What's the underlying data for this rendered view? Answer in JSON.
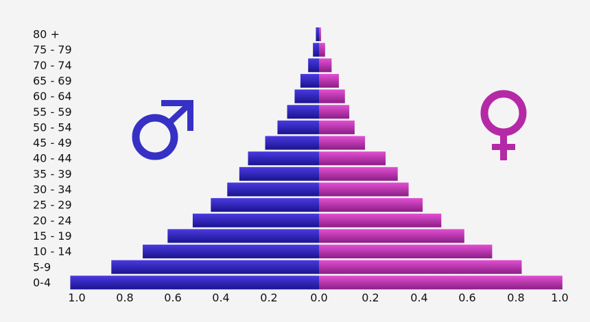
{
  "chart_data": {
    "type": "bar",
    "orientation": "horizontal-diverging",
    "title": "",
    "xlabel": "",
    "ylabel": "",
    "categories": [
      "0-4",
      "5-9",
      "10 - 14",
      "15 - 19",
      "20 - 24",
      "25 - 29",
      "30 - 34",
      "35 - 39",
      "40 - 44",
      "45 - 49",
      "50 - 54",
      "55 - 59",
      "60 - 64",
      "65 - 69",
      "70 - 74",
      "75 - 79",
      "80 +"
    ],
    "series": [
      {
        "name": "",
        "side": "left",
        "values": [
          1.03,
          0.86,
          0.73,
          0.627,
          0.523,
          0.448,
          0.38,
          0.33,
          0.294,
          0.223,
          0.172,
          0.132,
          0.101,
          0.077,
          0.045,
          0.025,
          0.013
        ]
      },
      {
        "name": "",
        "side": "right",
        "values": [
          1.005,
          0.837,
          0.715,
          0.6,
          0.505,
          0.428,
          0.37,
          0.325,
          0.275,
          0.19,
          0.147,
          0.125,
          0.107,
          0.082,
          0.052,
          0.025,
          0.008
        ]
      }
    ],
    "xticks": [
      "1.0",
      "0.8",
      "0.6",
      "0.4",
      "0.2",
      "0.0",
      "0.2",
      "0.4",
      "0.6",
      "0.8",
      "1.0"
    ],
    "xlim": [
      -1.0,
      1.0
    ],
    "grid": false,
    "legend": "none",
    "colors": {
      "left_light": "#4a3ae0",
      "left_dark": "#1a1490",
      "right_light": "#e24fd2",
      "right_dark": "#8c1e86",
      "male_symbol": "#3730c4",
      "female_symbol": "#b529a6"
    },
    "icons": [
      "male-symbol-icon",
      "female-symbol-icon"
    ]
  }
}
